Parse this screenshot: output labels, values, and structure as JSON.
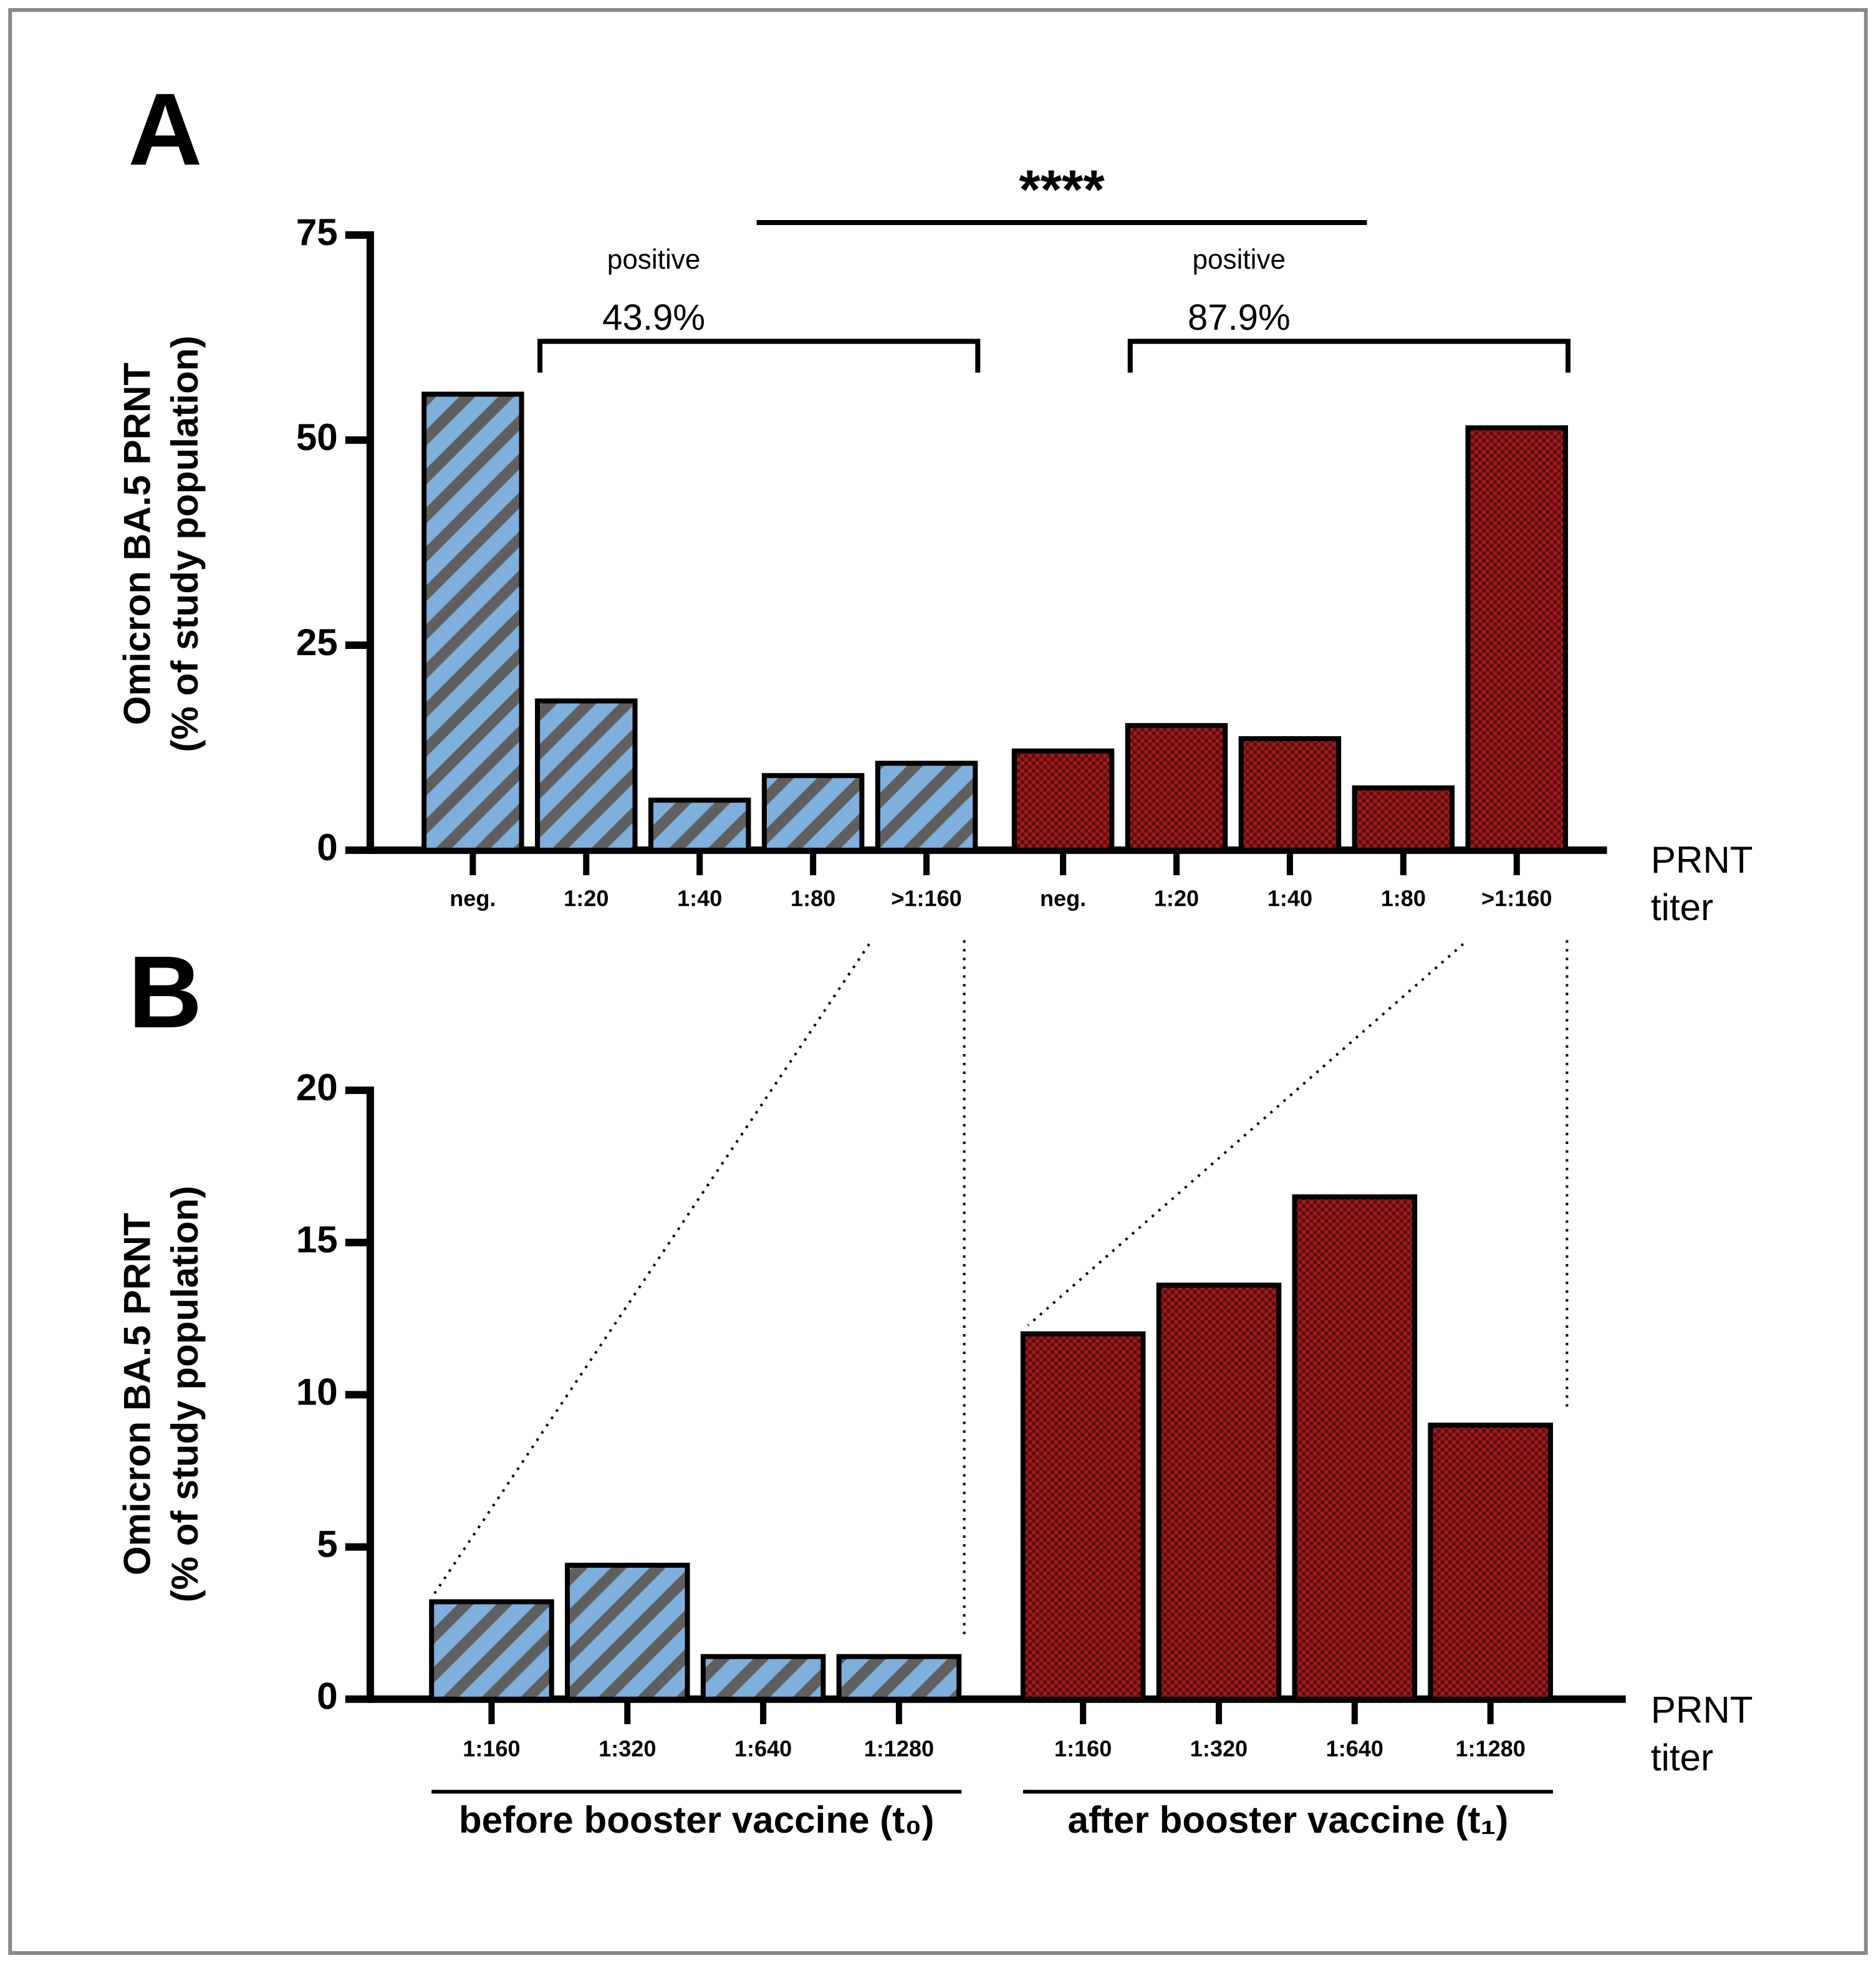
{
  "chart_data": [
    {
      "type": "bar",
      "panel": "A",
      "ylabel": [
        "Omicron BA.5 PRNT",
        "(% of study population)"
      ],
      "xlabel": [
        "PRNT",
        "titer"
      ],
      "ylim": [
        0,
        75
      ],
      "yticks": [
        0,
        25,
        50,
        75
      ],
      "significance": "****",
      "series": [
        {
          "color": "#7fb0dd",
          "pattern": "hatch",
          "categories": [
            "neg.",
            "1:20",
            "1:40",
            "1:80",
            ">1:160"
          ],
          "values": [
            55.6,
            18.2,
            6.1,
            9.1,
            10.6
          ],
          "bracket": {
            "text": "positive",
            "value": 43.9,
            "value_label": "43.9%"
          }
        },
        {
          "color": "#a31b1b",
          "pattern": "check",
          "categories": [
            "neg.",
            "1:20",
            "1:40",
            "1:80",
            ">1:160"
          ],
          "values": [
            12.1,
            15.2,
            13.6,
            7.6,
            51.5
          ],
          "bracket": {
            "text": "positive",
            "value": 87.9,
            "value_label": "87.9%"
          }
        }
      ]
    },
    {
      "type": "bar",
      "panel": "B",
      "ylabel": [
        "Omicron BA.5 PRNT",
        "(% of study population)"
      ],
      "xlabel": [
        "PRNT",
        "titer"
      ],
      "ylim": [
        0,
        20
      ],
      "yticks": [
        0,
        5,
        10,
        15,
        20
      ],
      "series": [
        {
          "name": "before booster vaccine (t₀)",
          "color": "#7fb0dd",
          "pattern": "hatch",
          "categories": [
            "1:160",
            "1:320",
            "1:640",
            "1:1280"
          ],
          "values": [
            3.2,
            4.4,
            1.4,
            1.4
          ]
        },
        {
          "name": "after booster vaccine (t₁)",
          "color": "#a31b1b",
          "pattern": "check",
          "categories": [
            "1:160",
            "1:320",
            "1:640",
            "1:1280"
          ],
          "values": [
            12.0,
            13.6,
            16.5,
            9.0
          ]
        }
      ]
    }
  ]
}
